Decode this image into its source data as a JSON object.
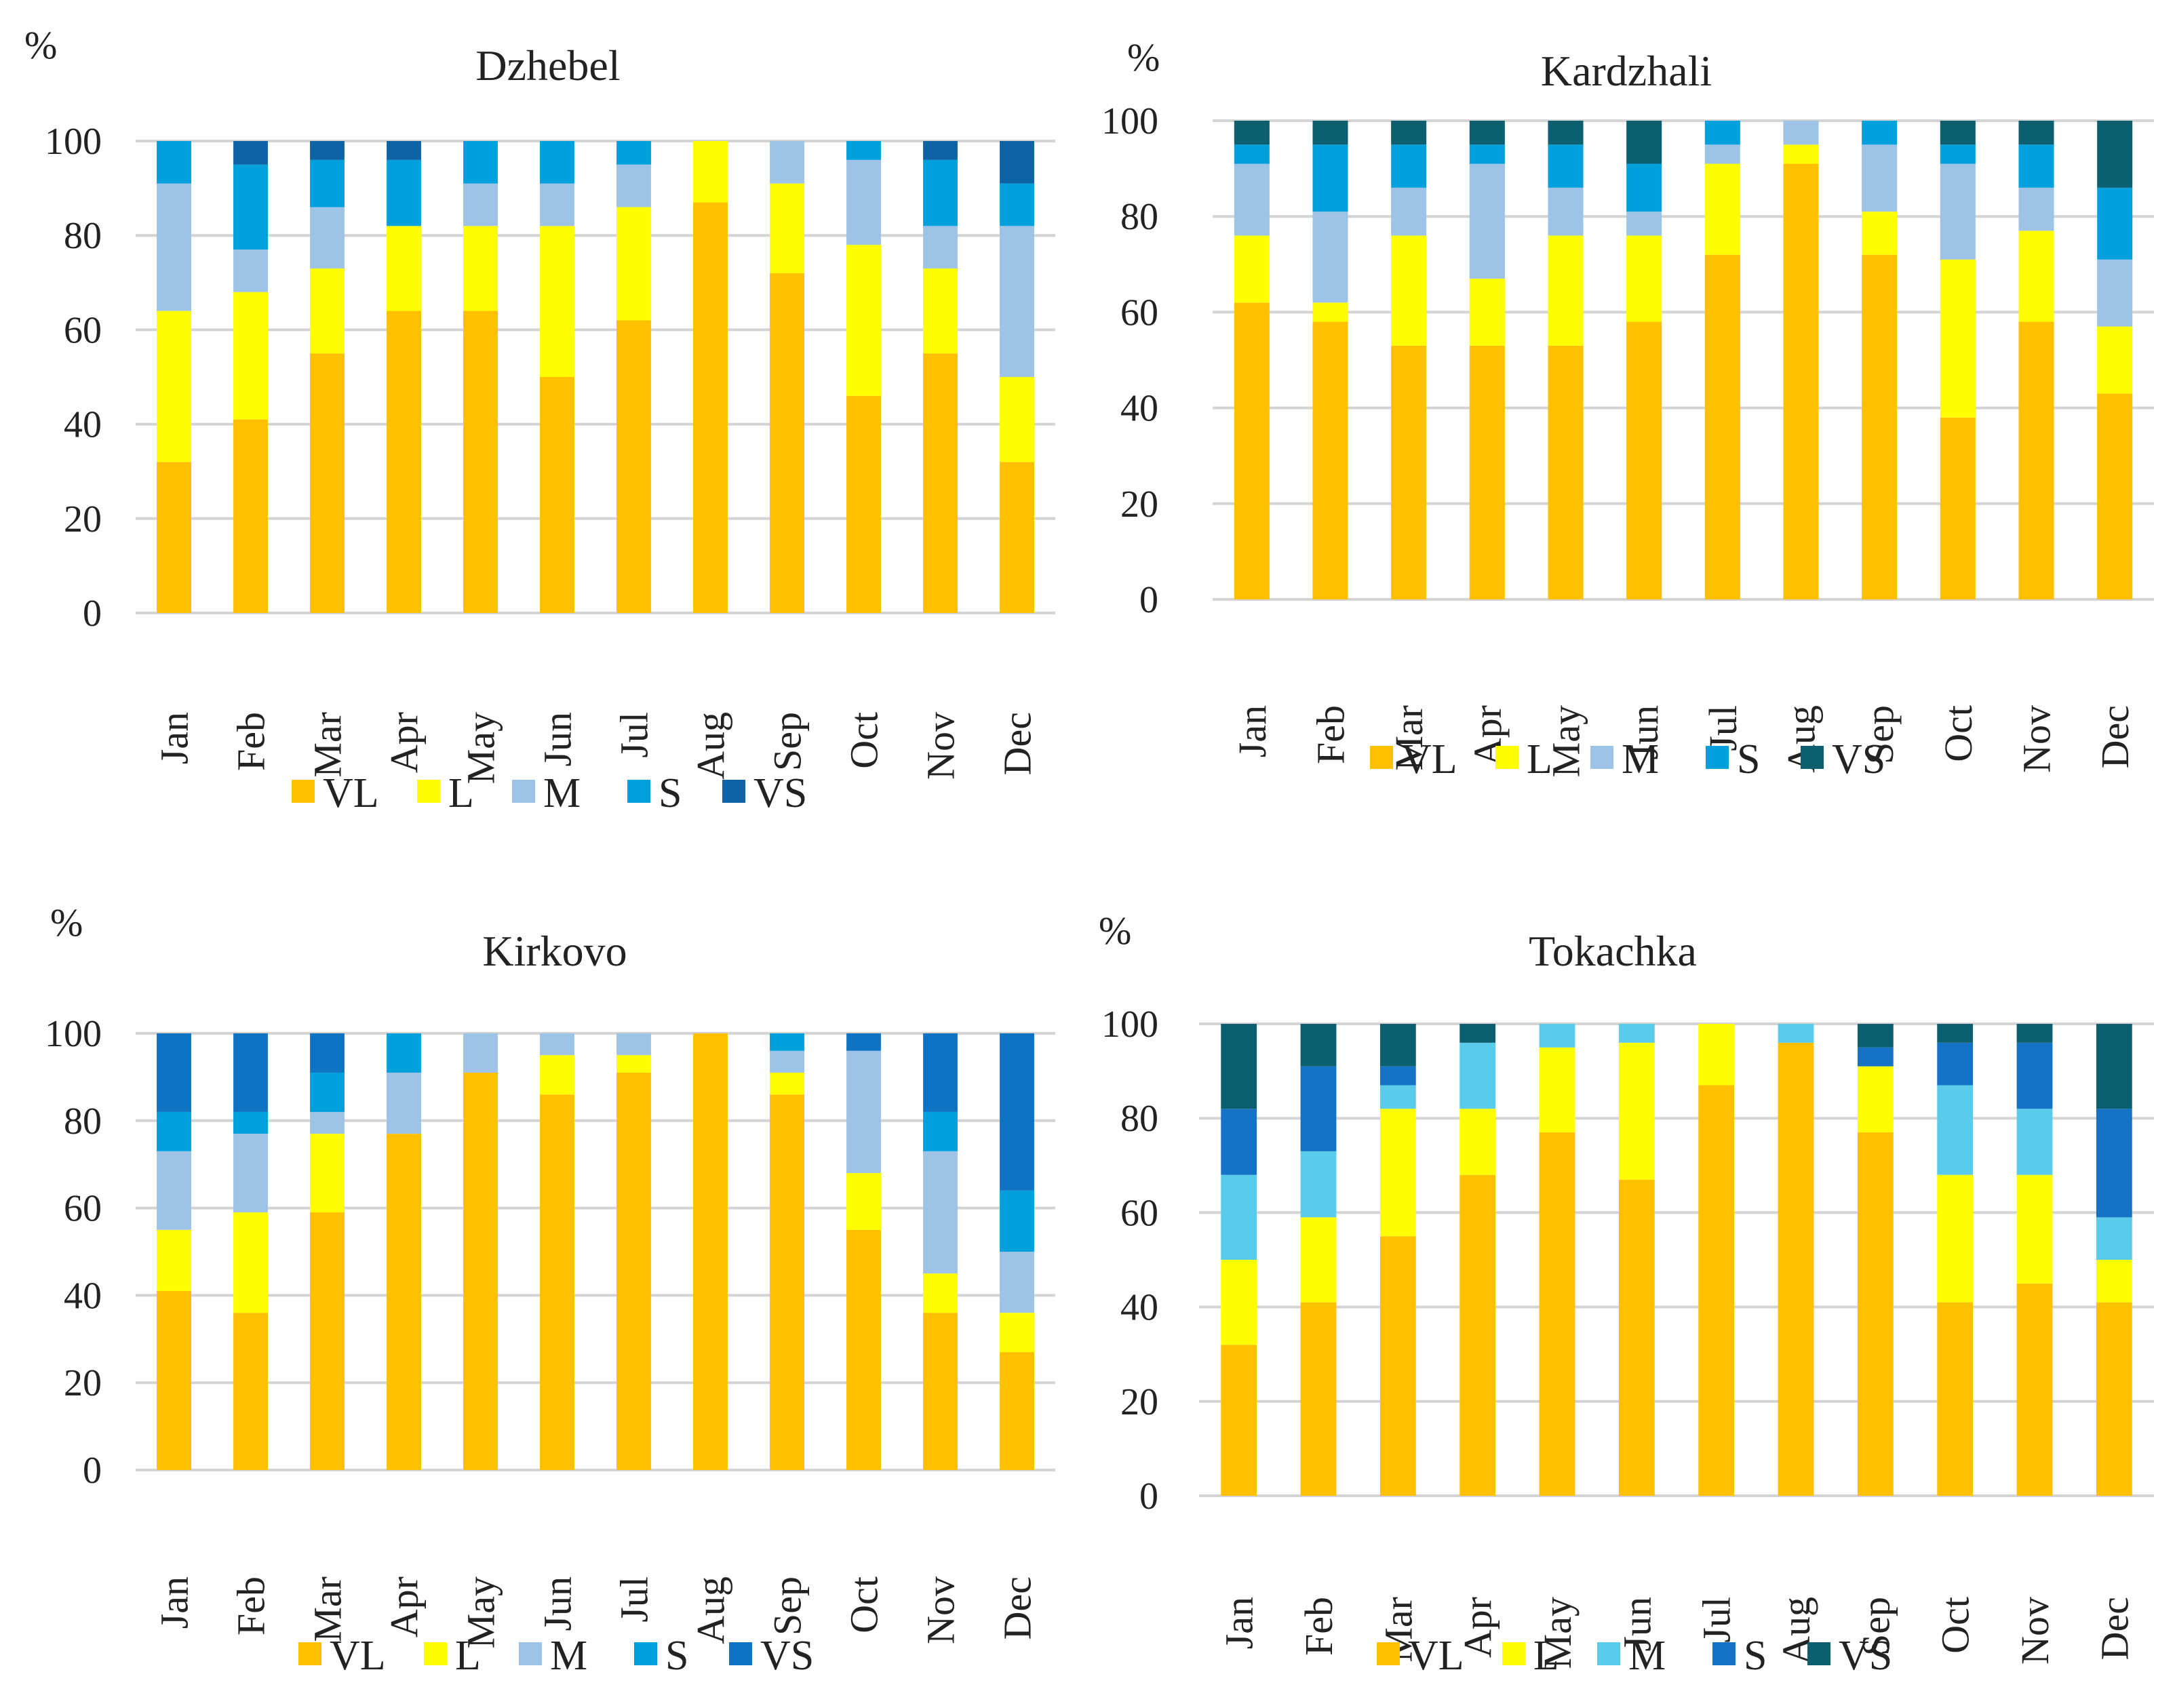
{
  "chart_data": [
    {
      "type": "bar",
      "stacked": true,
      "title": "Dzhebel",
      "ylabel": "%",
      "ylim": [
        0,
        100
      ],
      "yticks": [
        0,
        20,
        40,
        60,
        80,
        100
      ],
      "categories": [
        "Jan",
        "Feb",
        "Mar",
        "Apr",
        "May",
        "Jun",
        "Jul",
        "Aug",
        "Sep",
        "Oct",
        "Nov",
        "Dec"
      ],
      "series": [
        {
          "name": "VL",
          "color": "#FFC000",
          "values": [
            32,
            41,
            55,
            64,
            64,
            50,
            62,
            87,
            72,
            46,
            55,
            32
          ]
        },
        {
          "name": "L",
          "color": "#FFFF00",
          "values": [
            32,
            27,
            18,
            18,
            18,
            32,
            24,
            13,
            19,
            32,
            18,
            18
          ]
        },
        {
          "name": "M",
          "color": "#9DC3E6",
          "values": [
            27,
            9,
            13,
            0,
            9,
            9,
            9,
            0,
            9,
            18,
            9,
            32
          ]
        },
        {
          "name": "S",
          "color": "#00A0DC",
          "values": [
            9,
            18,
            10,
            14,
            9,
            9,
            5,
            0,
            0,
            4,
            14,
            9
          ]
        },
        {
          "name": "VS",
          "color": "#0E63A4",
          "values": [
            0,
            5,
            4,
            4,
            0,
            0,
            0,
            0,
            0,
            0,
            4,
            9
          ]
        }
      ]
    },
    {
      "type": "bar",
      "stacked": true,
      "title": "Kardzhali",
      "ylabel": "%",
      "ylim": [
        0,
        100
      ],
      "yticks": [
        0,
        20,
        40,
        60,
        80,
        100
      ],
      "categories": [
        "Jan",
        "Feb",
        "Mar",
        "Apr",
        "May",
        "Jun",
        "Jul",
        "Aug",
        "Sep",
        "Oct",
        "Nov",
        "Dec"
      ],
      "series": [
        {
          "name": "VL",
          "color": "#FFC000",
          "values": [
            62,
            58,
            53,
            53,
            53,
            58,
            72,
            91,
            72,
            38,
            58,
            43
          ]
        },
        {
          "name": "L",
          "color": "#FFFF00",
          "values": [
            14,
            4,
            23,
            14,
            23,
            18,
            19,
            4,
            9,
            33,
            19,
            14
          ]
        },
        {
          "name": "M",
          "color": "#9DC3E6",
          "values": [
            15,
            19,
            10,
            24,
            10,
            5,
            4,
            5,
            14,
            20,
            9,
            14
          ]
        },
        {
          "name": "S",
          "color": "#00A0DC",
          "values": [
            4,
            14,
            9,
            4,
            9,
            10,
            5,
            0,
            5,
            4,
            9,
            15
          ]
        },
        {
          "name": "VS",
          "color": "#0B5F6E",
          "values": [
            5,
            5,
            5,
            5,
            5,
            9,
            0,
            0,
            0,
            5,
            5,
            14
          ]
        }
      ]
    },
    {
      "type": "bar",
      "stacked": true,
      "title": "Kirkovo",
      "ylabel": "%",
      "ylim": [
        0,
        100
      ],
      "yticks": [
        0,
        20,
        40,
        60,
        80,
        100
      ],
      "categories": [
        "Jan",
        "Feb",
        "Mar",
        "Apr",
        "May",
        "Jun",
        "Jul",
        "Aug",
        "Sep",
        "Oct",
        "Nov",
        "Dec"
      ],
      "series": [
        {
          "name": "VL",
          "color": "#FFC000",
          "values": [
            41,
            36,
            59,
            77,
            91,
            86,
            91,
            100,
            86,
            55,
            36,
            27
          ]
        },
        {
          "name": "L",
          "color": "#FFFF00",
          "values": [
            14,
            23,
            18,
            0,
            0,
            9,
            4,
            0,
            5,
            13,
            9,
            9
          ]
        },
        {
          "name": "M",
          "color": "#9DC3E6",
          "values": [
            18,
            18,
            5,
            14,
            9,
            5,
            5,
            0,
            5,
            28,
            28,
            14
          ]
        },
        {
          "name": "S",
          "color": "#00A0DC",
          "values": [
            9,
            5,
            9,
            9,
            0,
            0,
            0,
            0,
            4,
            0,
            9,
            14
          ]
        },
        {
          "name": "VS",
          "color": "#0F73C4",
          "values": [
            18,
            18,
            9,
            0,
            0,
            0,
            0,
            0,
            0,
            4,
            18,
            36
          ]
        }
      ]
    },
    {
      "type": "bar",
      "stacked": true,
      "title": "Tokachka",
      "ylabel": "%",
      "ylim": [
        0,
        100
      ],
      "yticks": [
        0,
        20,
        40,
        60,
        80,
        100
      ],
      "categories": [
        "Jan",
        "Feb",
        "Mar",
        "Apr",
        "May",
        "Jun",
        "Jul",
        "Aug",
        "Sep",
        "Oct",
        "Nov",
        "Dec"
      ],
      "series": [
        {
          "name": "VL",
          "color": "#FFC000",
          "values": [
            32,
            41,
            55,
            68,
            77,
            67,
            87,
            96,
            77,
            41,
            45,
            41
          ]
        },
        {
          "name": "L",
          "color": "#FFFF00",
          "values": [
            18,
            18,
            27,
            14,
            18,
            29,
            13,
            0,
            14,
            27,
            23,
            9
          ]
        },
        {
          "name": "M",
          "color": "#5BCBEB",
          "values": [
            18,
            14,
            5,
            14,
            5,
            4,
            0,
            4,
            0,
            19,
            14,
            9
          ]
        },
        {
          "name": "S",
          "color": "#1473C6",
          "values": [
            14,
            18,
            4,
            0,
            0,
            0,
            0,
            0,
            4,
            9,
            14,
            23
          ]
        },
        {
          "name": "VS",
          "color": "#0B5F6E",
          "values": [
            18,
            9,
            9,
            4,
            0,
            0,
            0,
            0,
            5,
            4,
            4,
            18
          ]
        }
      ]
    }
  ]
}
